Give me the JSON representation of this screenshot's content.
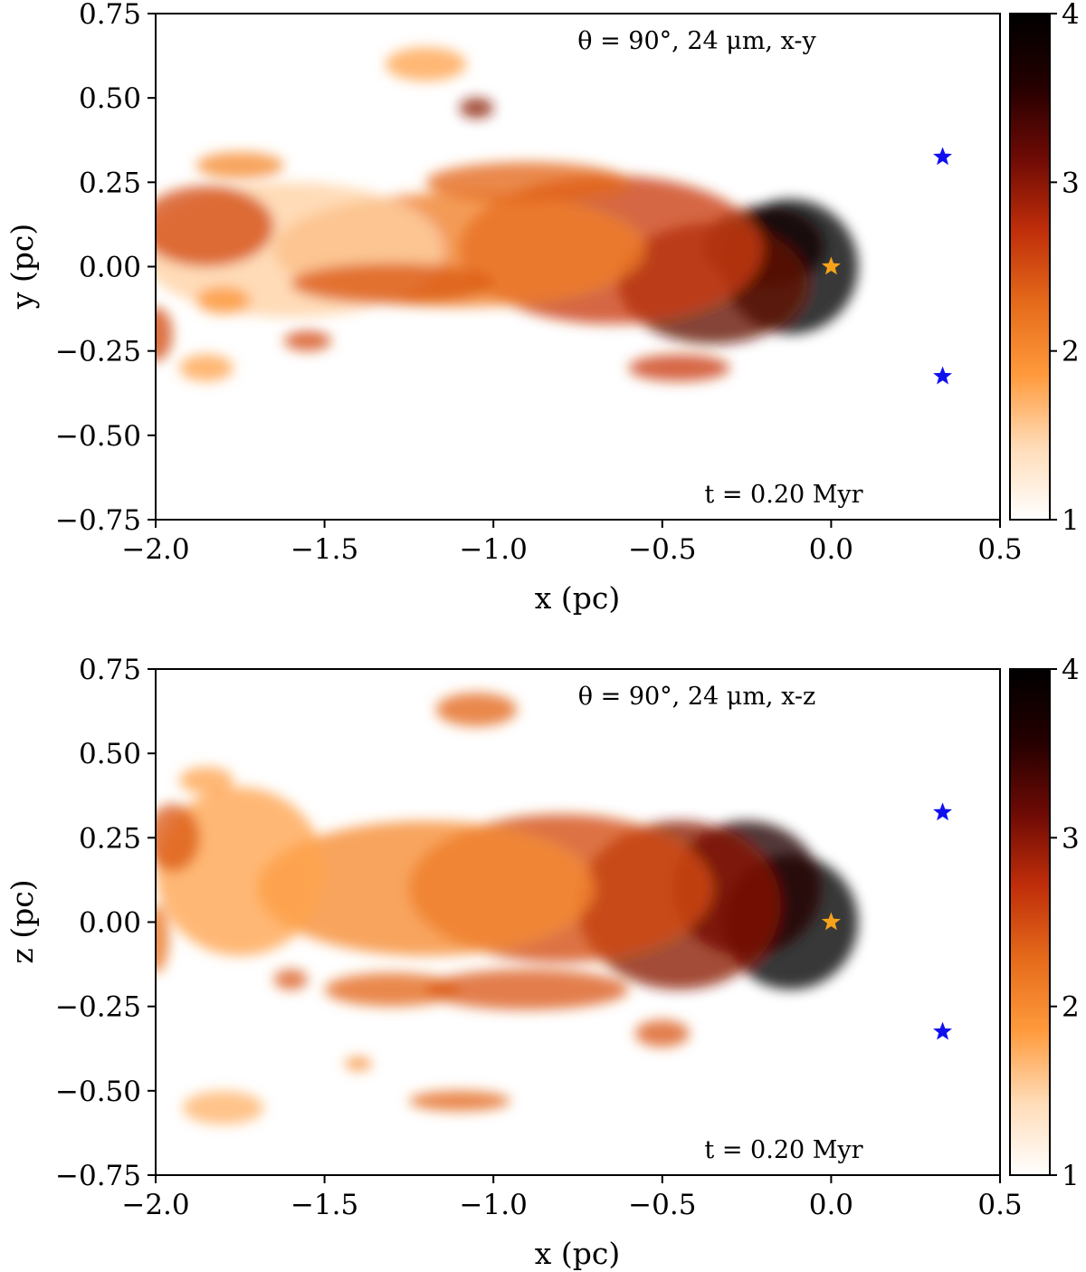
{
  "figure": {
    "colormap": [
      "#ffffff",
      "#ffdcb8",
      "#ff9a3c",
      "#e56a1a",
      "#c02e0a",
      "#6e0a05",
      "#240000",
      "#000000"
    ]
  },
  "chart_data": [
    {
      "type": "heatmap",
      "annotation": "θ = 90°, 24 μm, x-y",
      "time_label": "t = 0.20 Myr",
      "xlabel": "x (pc)",
      "ylabel": "y (pc)",
      "xlim": [
        -2.0,
        0.5
      ],
      "ylim": [
        -0.75,
        0.75
      ],
      "xticks": [
        "−2.0",
        "−1.5",
        "−1.0",
        "−0.5",
        "0.0",
        "0.5"
      ],
      "xtick_values": [
        -2.0,
        -1.5,
        -1.0,
        -0.5,
        0.0,
        0.5
      ],
      "yticks": [
        "0.75",
        "0.50",
        "0.25",
        "0.00",
        "−0.25",
        "−0.50",
        "−0.75"
      ],
      "ytick_values": [
        0.75,
        0.5,
        0.25,
        0.0,
        -0.25,
        -0.5,
        -0.75
      ],
      "colorbar": {
        "min": 1,
        "max": 4,
        "ticks": [
          "4",
          "3",
          "2",
          "1"
        ],
        "tick_values": [
          4,
          3,
          2,
          1
        ]
      },
      "markers": [
        {
          "name": "orange-star",
          "x": 0.0,
          "y": 0.0,
          "color": "#f5a31a"
        },
        {
          "name": "blue-star-upper",
          "x": 0.33,
          "y": 0.325,
          "color": "#1010ee"
        },
        {
          "name": "blue-star-lower",
          "x": 0.33,
          "y": -0.325,
          "color": "#1010ee"
        }
      ],
      "emission_blobs": [
        {
          "x": -0.12,
          "y": 0.0,
          "rx": 0.2,
          "ry": 0.2,
          "v": 4.0
        },
        {
          "x": -0.2,
          "y": 0.06,
          "rx": 0.18,
          "ry": 0.12,
          "v": 3.8
        },
        {
          "x": -0.35,
          "y": -0.05,
          "rx": 0.28,
          "ry": 0.18,
          "v": 3.2
        },
        {
          "x": -0.65,
          "y": 0.05,
          "rx": 0.45,
          "ry": 0.22,
          "v": 2.6
        },
        {
          "x": -1.1,
          "y": 0.05,
          "rx": 0.55,
          "ry": 0.17,
          "v": 2.1
        },
        {
          "x": -1.6,
          "y": 0.05,
          "rx": 0.45,
          "ry": 0.2,
          "v": 1.5
        },
        {
          "x": -1.85,
          "y": 0.12,
          "rx": 0.2,
          "ry": 0.12,
          "v": 2.5
        },
        {
          "x": -1.75,
          "y": 0.3,
          "rx": 0.13,
          "ry": 0.04,
          "v": 2.0
        },
        {
          "x": -1.2,
          "y": 0.6,
          "rx": 0.12,
          "ry": 0.05,
          "v": 1.8
        },
        {
          "x": -1.05,
          "y": 0.47,
          "rx": 0.05,
          "ry": 0.03,
          "v": 3.0
        },
        {
          "x": -0.9,
          "y": 0.25,
          "rx": 0.3,
          "ry": 0.06,
          "v": 2.3
        },
        {
          "x": -1.3,
          "y": -0.05,
          "rx": 0.3,
          "ry": 0.06,
          "v": 2.4
        },
        {
          "x": -1.85,
          "y": -0.3,
          "rx": 0.08,
          "ry": 0.04,
          "v": 1.8
        },
        {
          "x": -2.0,
          "y": -0.2,
          "rx": 0.05,
          "ry": 0.08,
          "v": 2.5
        },
        {
          "x": -0.45,
          "y": -0.3,
          "rx": 0.15,
          "ry": 0.04,
          "v": 2.6
        },
        {
          "x": -1.55,
          "y": -0.22,
          "rx": 0.07,
          "ry": 0.03,
          "v": 2.5
        },
        {
          "x": -1.8,
          "y": -0.1,
          "rx": 0.08,
          "ry": 0.04,
          "v": 1.9
        }
      ]
    },
    {
      "type": "heatmap",
      "annotation": "θ = 90°, 24 μm, x-z",
      "time_label": "t = 0.20 Myr",
      "xlabel": "x (pc)",
      "ylabel": "z (pc)",
      "xlim": [
        -2.0,
        0.5
      ],
      "ylim": [
        -0.75,
        0.75
      ],
      "xticks": [
        "−2.0",
        "−1.5",
        "−1.0",
        "−0.5",
        "0.0",
        "0.5"
      ],
      "xtick_values": [
        -2.0,
        -1.5,
        -1.0,
        -0.5,
        0.0,
        0.5
      ],
      "yticks": [
        "0.75",
        "0.50",
        "0.25",
        "0.00",
        "−0.25",
        "−0.50",
        "−0.75"
      ],
      "ytick_values": [
        0.75,
        0.5,
        0.25,
        0.0,
        -0.25,
        -0.5,
        -0.75
      ],
      "colorbar": {
        "min": 1,
        "max": 4,
        "ticks": [
          "4",
          "3",
          "2",
          "1"
        ],
        "tick_values": [
          4,
          3,
          2,
          1
        ]
      },
      "markers": [
        {
          "name": "orange-star",
          "x": 0.0,
          "y": 0.0,
          "color": "#f5a31a"
        },
        {
          "name": "blue-star-upper",
          "x": 0.33,
          "y": 0.325,
          "color": "#1010ee"
        },
        {
          "name": "blue-star-lower",
          "x": 0.33,
          "y": -0.325,
          "color": "#1010ee"
        }
      ],
      "emission_blobs": [
        {
          "x": -0.12,
          "y": 0.0,
          "rx": 0.2,
          "ry": 0.2,
          "v": 4.0
        },
        {
          "x": -0.25,
          "y": 0.1,
          "rx": 0.22,
          "ry": 0.2,
          "v": 3.6
        },
        {
          "x": -0.45,
          "y": 0.05,
          "rx": 0.3,
          "ry": 0.25,
          "v": 3.0
        },
        {
          "x": -0.8,
          "y": 0.1,
          "rx": 0.45,
          "ry": 0.22,
          "v": 2.5
        },
        {
          "x": -1.2,
          "y": 0.1,
          "rx": 0.5,
          "ry": 0.2,
          "v": 2.0
        },
        {
          "x": -1.75,
          "y": 0.15,
          "rx": 0.25,
          "ry": 0.25,
          "v": 1.8
        },
        {
          "x": -1.95,
          "y": 0.25,
          "rx": 0.08,
          "ry": 0.1,
          "v": 2.4
        },
        {
          "x": -1.05,
          "y": 0.63,
          "rx": 0.12,
          "ry": 0.05,
          "v": 2.3
        },
        {
          "x": -1.85,
          "y": 0.42,
          "rx": 0.08,
          "ry": 0.04,
          "v": 1.8
        },
        {
          "x": -1.3,
          "y": -0.2,
          "rx": 0.2,
          "ry": 0.05,
          "v": 2.3
        },
        {
          "x": -1.8,
          "y": -0.55,
          "rx": 0.12,
          "ry": 0.05,
          "v": 1.7
        },
        {
          "x": -1.1,
          "y": -0.53,
          "rx": 0.15,
          "ry": 0.03,
          "v": 2.3
        },
        {
          "x": -0.5,
          "y": -0.33,
          "rx": 0.08,
          "ry": 0.04,
          "v": 2.4
        },
        {
          "x": -0.9,
          "y": -0.2,
          "rx": 0.3,
          "ry": 0.06,
          "v": 2.4
        },
        {
          "x": -2.0,
          "y": -0.05,
          "rx": 0.04,
          "ry": 0.1,
          "v": 2.2
        },
        {
          "x": -1.6,
          "y": -0.17,
          "rx": 0.05,
          "ry": 0.03,
          "v": 2.4
        },
        {
          "x": -1.4,
          "y": -0.42,
          "rx": 0.04,
          "ry": 0.02,
          "v": 2.0
        }
      ]
    }
  ]
}
